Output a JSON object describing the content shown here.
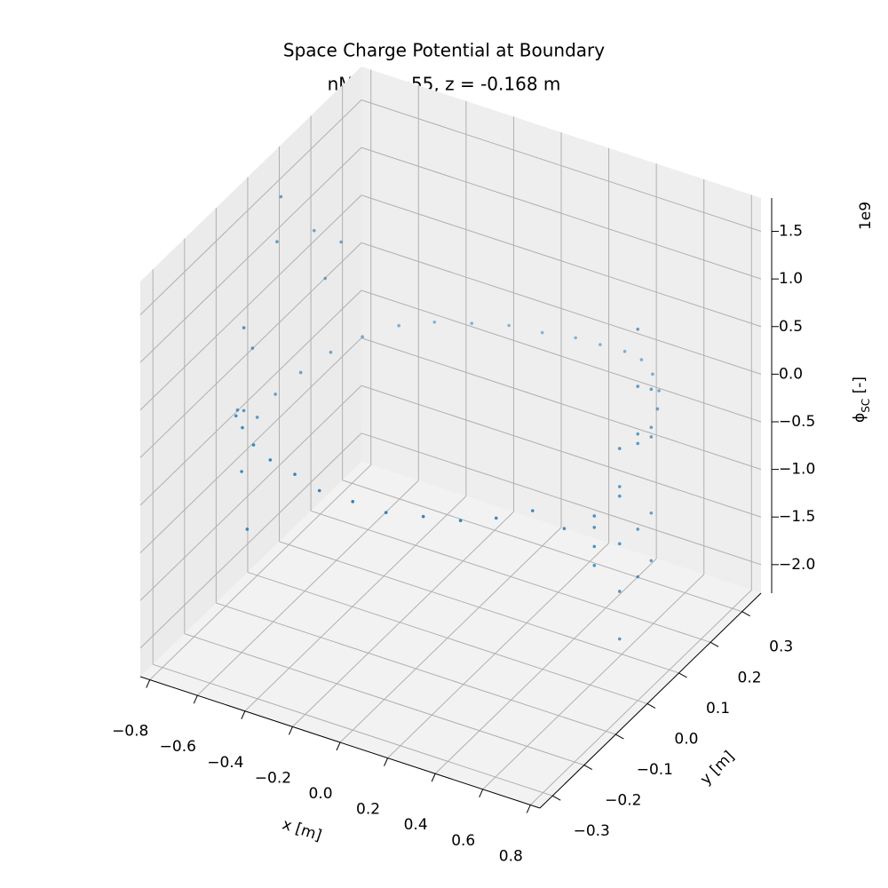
{
  "chart_data": {
    "type": "scatter3d",
    "title": "Space Charge Potential at Boundary",
    "subtitle": "nModes=55, z = -0.168 m",
    "xlabel": "x [m]",
    "ylabel": "y [m]",
    "zlabel": {
      "symbol": "ϕ",
      "subscript": "SC",
      "unit": " [-]"
    },
    "z_offset_label": "1e9",
    "color": "#1f77b4",
    "grid": true,
    "xlim": [
      -0.84,
      0.84
    ],
    "ylim": [
      -0.34,
      0.36
    ],
    "zlim": [
      -2.3,
      1.85
    ],
    "xticks": [
      {
        "value": -0.8,
        "label": "−0.8"
      },
      {
        "value": -0.6,
        "label": "−0.6"
      },
      {
        "value": -0.4,
        "label": "−0.4"
      },
      {
        "value": -0.2,
        "label": "−0.2"
      },
      {
        "value": 0,
        "label": "0.0"
      },
      0.2,
      0.4,
      0.6,
      0.8
    ],
    "yticks": [
      {
        "value": -0.3,
        "label": "−0.3"
      },
      {
        "value": -0.2,
        "label": "−0.2"
      },
      {
        "value": -0.1,
        "label": "−0.1"
      },
      {
        "value": 0,
        "label": "0.0"
      },
      0.1,
      0.2,
      0.3
    ],
    "zticks": [
      {
        "value": -2.0,
        "label": "−2.0"
      },
      {
        "value": -1.5,
        "label": "−1.5"
      },
      {
        "value": -1.0,
        "label": "−1.0"
      },
      {
        "value": -0.5,
        "label": "−0.5"
      },
      {
        "value": 0,
        "label": "0.0"
      },
      0.5,
      {
        "value": 1.0,
        "label": "1.0"
      },
      1.5
    ],
    "x": [
      0.8,
      0.79,
      0.75,
      0.69,
      0.61,
      0.51,
      0.4,
      0.27,
      0.14,
      0,
      -0.14,
      -0.27,
      -0.4,
      -0.51,
      -0.61,
      -0.69,
      -0.75,
      -0.79,
      -0.8,
      -0.79,
      -0.75,
      -0.69,
      -0.61,
      -0.51,
      -0.4,
      -0.27,
      -0.14,
      0,
      0.14,
      0.27,
      0.4,
      0.51,
      0.61,
      0.69,
      0.75,
      0.79,
      0.79,
      0.79,
      0.79,
      0.79,
      0.79,
      0.8,
      0.8,
      0.8,
      0.8,
      0.8,
      0.79,
      0.79,
      0.79,
      0.79,
      0.75,
      0.75,
      0.75,
      -0.78,
      -0.77,
      -0.72,
      -0.66,
      -0.75,
      -0.7,
      -0.78,
      -0.6,
      -0.55
    ],
    "y": [
      0,
      0.05,
      0.1,
      0.15,
      0.19,
      0.23,
      0.26,
      0.28,
      0.3,
      0.3,
      0.3,
      0.28,
      0.26,
      0.23,
      0.19,
      0.15,
      0.1,
      0.05,
      0,
      -0.05,
      -0.1,
      -0.15,
      -0.19,
      -0.23,
      -0.26,
      -0.28,
      -0.3,
      -0.3,
      -0.3,
      -0.28,
      -0.26,
      -0.23,
      -0.19,
      -0.15,
      -0.1,
      -0.05,
      -0.05,
      -0.05,
      -0.05,
      -0.05,
      -0.05,
      0,
      0,
      0,
      0,
      0,
      0.05,
      0.05,
      0.05,
      0.05,
      -0.1,
      -0.1,
      -0.1,
      0.06,
      0.04,
      0.12,
      0.16,
      -0.08,
      0.14,
      -0.03,
      -0.2,
      -0.22
    ],
    "z": [
      0.4,
      0.4,
      0.4,
      0.38,
      0.36,
      0.3,
      0.2,
      0.1,
      0,
      -0.06,
      -0.1,
      -0.12,
      -0.15,
      -0.18,
      -0.25,
      -0.35,
      -0.45,
      -0.55,
      -0.64,
      -0.4,
      -0.2,
      -0.05,
      0.02,
      0.05,
      0.08,
      0.1,
      0.1,
      0.1,
      0.1,
      0.1,
      0.1,
      0.12,
      0.15,
      -0.1,
      -0.08,
      0.1,
      -1.5,
      -1.0,
      -0.5,
      0,
      0.5,
      1.6,
      1.0,
      0.5,
      -0.5,
      -1.0,
      -1.0,
      -0.5,
      0.3,
      0.8,
      -0.6,
      -0.4,
      -0.2,
      1.5,
      1.1,
      1.0,
      0.8,
      0.6,
      0.45,
      0.2,
      -0.4,
      -0.9
    ]
  }
}
